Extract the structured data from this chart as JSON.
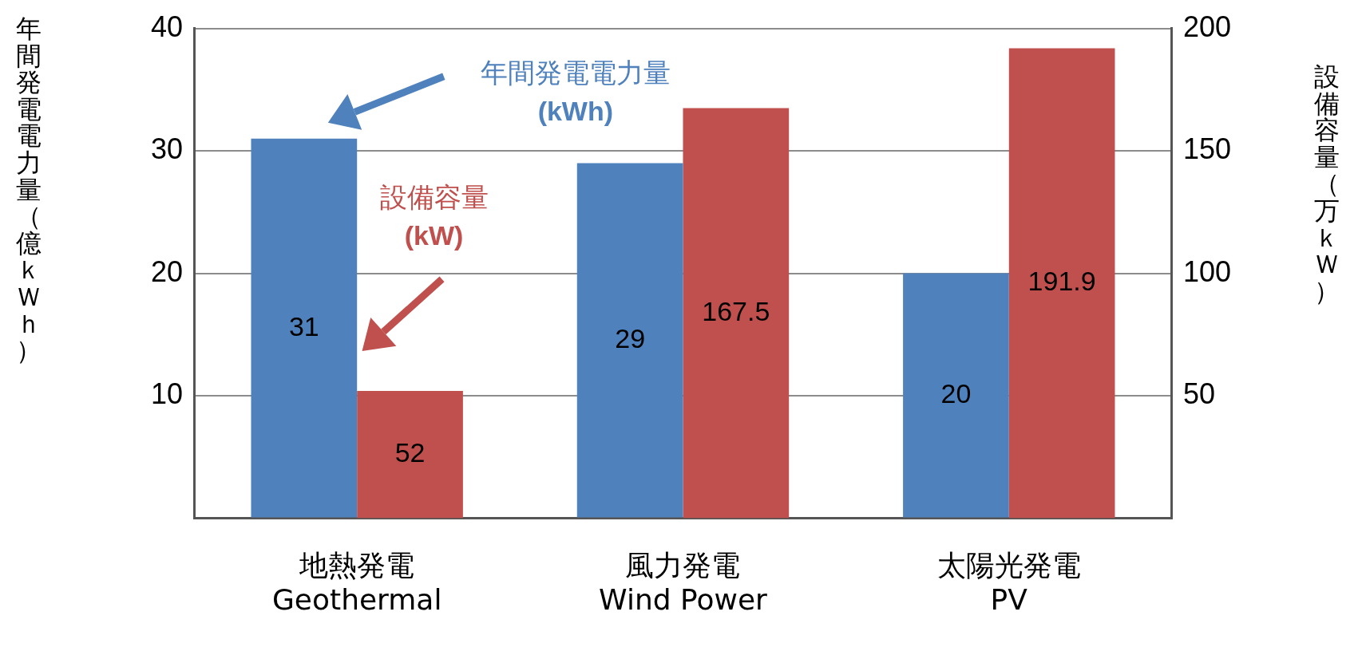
{
  "chart_data": {
    "type": "bar",
    "ylabel": "年間発電電力量（億ｋＷｈ）",
    "y2label": "設備容量（万ｋＷ）",
    "categories": [
      "地熱発電\nGeothermal",
      "風力発電\nWind Power",
      "太陽光発電\nPV"
    ],
    "series": [
      {
        "name": "年間発電電力量\n(kWh)",
        "color": "#4f81bd",
        "values": [
          31,
          29,
          20
        ]
      },
      {
        "name": "設備容量\n(kW)",
        "color": "#c0504d",
        "values": [
          52,
          167.5,
          191.9
        ],
        "axis": "y2"
      }
    ],
    "ylim": [
      0,
      40
    ],
    "yticks": [
      {
        "value": 0,
        "label": null
      },
      10,
      20,
      30,
      40
    ],
    "y2lim": [
      0,
      200
    ],
    "y2ticks": [
      50,
      100,
      150,
      200
    ],
    "grid": "y",
    "legend": "top left",
    "data_labels": true
  }
}
